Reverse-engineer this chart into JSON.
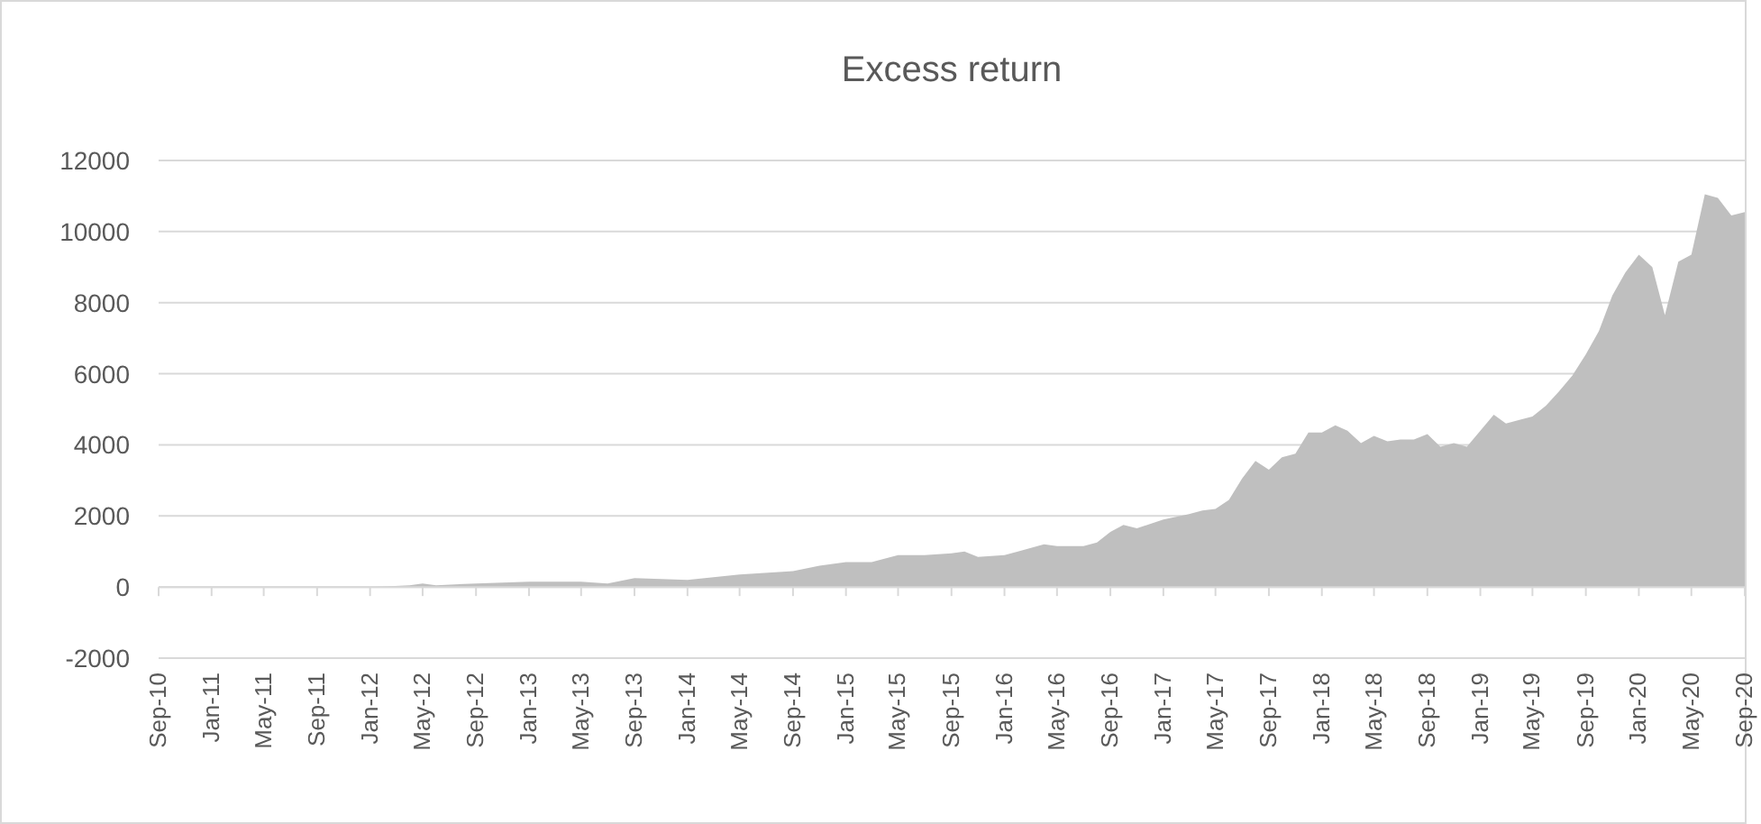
{
  "chart_data": {
    "type": "area",
    "title": "Excess return",
    "x": [
      "2010-09",
      "2011-01",
      "2011-05",
      "2011-09",
      "2012-01",
      "2012-04",
      "2012-05",
      "2012-06",
      "2012-09",
      "2013-01",
      "2013-05",
      "2013-07",
      "2013-09",
      "2014-01",
      "2014-05",
      "2014-09",
      "2014-11",
      "2015-01",
      "2015-03",
      "2015-05",
      "2015-07",
      "2015-09",
      "2015-10",
      "2015-11",
      "2016-01",
      "2016-02",
      "2016-04",
      "2016-05",
      "2016-07",
      "2016-08",
      "2016-09",
      "2016-10",
      "2016-11",
      "2017-01",
      "2017-03",
      "2017-04",
      "2017-05",
      "2017-06",
      "2017-07",
      "2017-08",
      "2017-09",
      "2017-10",
      "2017-11",
      "2017-12",
      "2018-01",
      "2018-02",
      "2018-03",
      "2018-04",
      "2018-05",
      "2018-06",
      "2018-07",
      "2018-08",
      "2018-09",
      "2018-10",
      "2018-11",
      "2018-12",
      "2019-01",
      "2019-02",
      "2019-03",
      "2019-04",
      "2019-05",
      "2019-06",
      "2019-07",
      "2019-08",
      "2019-09",
      "2019-10",
      "2019-11",
      "2019-12",
      "2020-01",
      "2020-02",
      "2020-03",
      "2020-04",
      "2020-05",
      "2020-06",
      "2020-07",
      "2020-08",
      "2020-09"
    ],
    "series": [
      {
        "color": "#bfbfbf",
        "values": [
          0,
          0,
          0,
          0,
          0,
          50,
          100,
          50,
          100,
          150,
          150,
          100,
          250,
          200,
          350,
          450,
          600,
          700,
          700,
          900,
          900,
          950,
          1000,
          850,
          900,
          1000,
          1200,
          1150,
          1150,
          1250,
          1550,
          1750,
          1650,
          1900,
          2050,
          2150,
          2200,
          2450,
          3050,
          3550,
          3300,
          3650,
          3750,
          4350,
          4350,
          4550,
          4400,
          4050,
          4250,
          4100,
          4150,
          4150,
          4300,
          3950,
          4050,
          3950,
          4400,
          4850,
          4600,
          4700,
          4800,
          5100,
          5500,
          5950,
          6550,
          7200,
          8200,
          8850,
          9350,
          9000,
          7650,
          9150,
          9350,
          11050,
          10950,
          10450,
          10550
        ]
      }
    ],
    "xlim": [
      "2010-09",
      "2020-09"
    ],
    "xticks": [
      {
        "value": "2010-09",
        "label": "Sep-10"
      },
      {
        "value": "2011-01",
        "label": "Jan-11"
      },
      {
        "value": "2011-05",
        "label": "May-11"
      },
      {
        "value": "2011-09",
        "label": "Sep-11"
      },
      {
        "value": "2012-01",
        "label": "Jan-12"
      },
      {
        "value": "2012-05",
        "label": "May-12"
      },
      {
        "value": "2012-09",
        "label": "Sep-12"
      },
      {
        "value": "2013-01",
        "label": "Jan-13"
      },
      {
        "value": "2013-05",
        "label": "May-13"
      },
      {
        "value": "2013-09",
        "label": "Sep-13"
      },
      {
        "value": "2014-01",
        "label": "Jan-14"
      },
      {
        "value": "2014-05",
        "label": "May-14"
      },
      {
        "value": "2014-09",
        "label": "Sep-14"
      },
      {
        "value": "2015-01",
        "label": "Jan-15"
      },
      {
        "value": "2015-05",
        "label": "May-15"
      },
      {
        "value": "2015-09",
        "label": "Sep-15"
      },
      {
        "value": "2016-01",
        "label": "Jan-16"
      },
      {
        "value": "2016-05",
        "label": "May-16"
      },
      {
        "value": "2016-09",
        "label": "Sep-16"
      },
      {
        "value": "2017-01",
        "label": "Jan-17"
      },
      {
        "value": "2017-05",
        "label": "May-17"
      },
      {
        "value": "2017-09",
        "label": "Sep-17"
      },
      {
        "value": "2018-01",
        "label": "Jan-18"
      },
      {
        "value": "2018-05",
        "label": "May-18"
      },
      {
        "value": "2018-09",
        "label": "Sep-18"
      },
      {
        "value": "2019-01",
        "label": "Jan-19"
      },
      {
        "value": "2019-05",
        "label": "May-19"
      },
      {
        "value": "2019-09",
        "label": "Sep-19"
      },
      {
        "value": "2020-01",
        "label": "Jan-20"
      },
      {
        "value": "2020-05",
        "label": "May-20"
      },
      {
        "value": "2020-09",
        "label": "Sep-20"
      }
    ],
    "ylim": [
      -2000,
      12000
    ],
    "yticks": [
      -2000,
      0,
      2000,
      4000,
      6000,
      8000,
      10000,
      12000
    ],
    "grid": "y"
  }
}
